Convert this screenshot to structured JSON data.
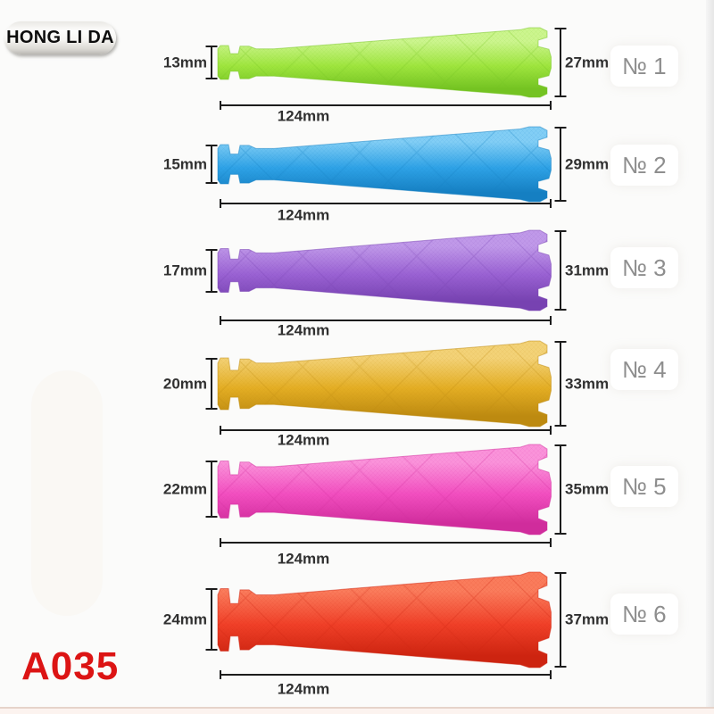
{
  "page": {
    "brand_badge": "HONG LI DA",
    "product_code": "A035",
    "product_code_color": "#dc1414",
    "background_color": "#fbfbfa"
  },
  "rollers": [
    {
      "number_label": "№ 1",
      "small_diameter": "13mm",
      "large_diameter": "27mm",
      "length": "124mm",
      "color_name": "green",
      "color": "#9fe53e",
      "color_light": "#ccf58e",
      "color_dark": "#74c322"
    },
    {
      "number_label": "№ 2",
      "small_diameter": "15mm",
      "large_diameter": "29mm",
      "length": "124mm",
      "color_name": "blue",
      "color": "#2ea2e6",
      "color_light": "#82cef5",
      "color_dark": "#157fc2"
    },
    {
      "number_label": "№ 3",
      "small_diameter": "17mm",
      "large_diameter": "31mm",
      "length": "124mm",
      "color_name": "purple",
      "color": "#9a62d3",
      "color_light": "#c099e9",
      "color_dark": "#7742b1"
    },
    {
      "number_label": "№ 4",
      "small_diameter": "20mm",
      "large_diameter": "33mm",
      "length": "124mm",
      "color_name": "gold",
      "color": "#e4ae24",
      "color_light": "#f3d277",
      "color_dark": "#bd8a10"
    },
    {
      "number_label": "№ 5",
      "small_diameter": "22mm",
      "large_diameter": "35mm",
      "length": "124mm",
      "color_name": "pink",
      "color": "#f24fc0",
      "color_light": "#fa93da",
      "color_dark": "#d02c9c"
    },
    {
      "number_label": "№ 6",
      "small_diameter": "24mm",
      "large_diameter": "37mm",
      "length": "124mm",
      "color_name": "red",
      "color": "#f04028",
      "color_light": "#fa7c5c",
      "color_dark": "#cd2410"
    }
  ]
}
